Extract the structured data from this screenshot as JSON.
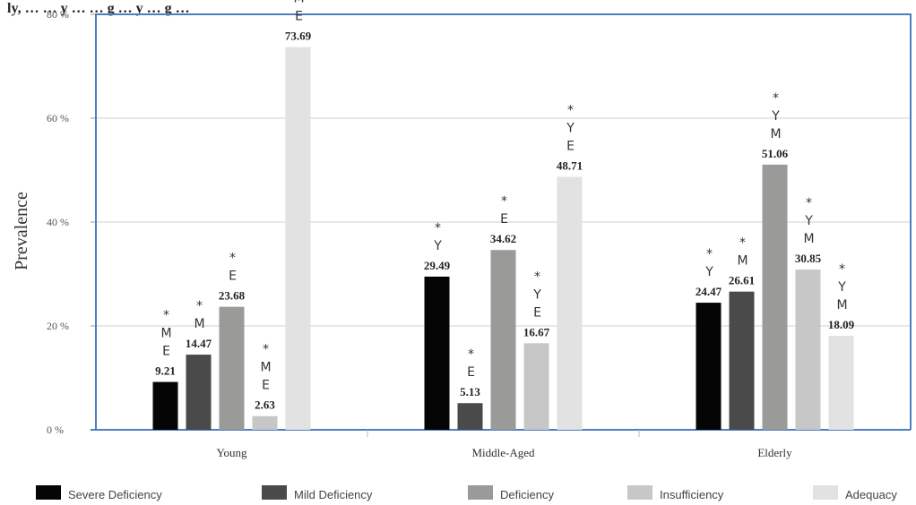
{
  "header": {
    "caption_fragment": "ly, … … y … … g … y … g …"
  },
  "colors": {
    "frame": "#4a7fc1",
    "grid": "#cfcfcf",
    "series": [
      "#050505",
      "#4a4a4a",
      "#9a9a98",
      "#c7c7c7",
      "#e2e2e2"
    ]
  },
  "chart_data": {
    "type": "bar",
    "categories": [
      "Young",
      "Middle-Aged",
      "Elderly"
    ],
    "ylabel": "Prevalence",
    "xlabel": "",
    "ylim": [
      0,
      80
    ],
    "yticks": [
      0,
      20,
      40,
      60,
      80
    ],
    "ytick_labels": [
      "0 %",
      "20 %",
      "40 %",
      "60 %",
      "80 %"
    ],
    "grid": true,
    "legend_position": "bottom",
    "series": [
      {
        "name": "Severe Deficiency",
        "values": [
          9.21,
          29.49,
          24.47
        ],
        "labels": [
          "9.21",
          "29.49",
          "24.47"
        ]
      },
      {
        "name": "Mild Deficiency",
        "values": [
          14.47,
          5.13,
          26.61
        ],
        "labels": [
          "14.47",
          "5.13",
          "26.61"
        ]
      },
      {
        "name": "Deficiency",
        "values": [
          23.68,
          34.62,
          51.06
        ],
        "labels": [
          "23.68",
          "34.62",
          "51.06"
        ]
      },
      {
        "name": "Insufficiency",
        "values": [
          2.63,
          16.67,
          30.85
        ],
        "labels": [
          "2.63",
          "16.67",
          "30.85"
        ]
      },
      {
        "name": "Adequacy",
        "values": [
          73.69,
          48.71,
          18.09
        ],
        "labels": [
          "73.69",
          "48.71",
          "18.09"
        ]
      }
    ],
    "annotations": [
      [
        [
          "*",
          "M",
          "E"
        ],
        [
          "*",
          "M"
        ],
        [
          "*",
          "E"
        ],
        [
          "*",
          "M",
          "E"
        ],
        [
          "*",
          "M",
          "E"
        ]
      ],
      [
        [
          "*",
          "Y"
        ],
        [
          "*",
          "E"
        ],
        [
          "*",
          "E"
        ],
        [
          "*",
          "Y",
          "E"
        ],
        [
          "*",
          "Y",
          "E"
        ]
      ],
      [
        [
          "*",
          "Y"
        ],
        [
          "*",
          "M"
        ],
        [
          "*",
          "Y",
          "M"
        ],
        [
          "*",
          "Y",
          "M"
        ],
        [
          "*",
          "Y",
          "M"
        ]
      ]
    ]
  }
}
